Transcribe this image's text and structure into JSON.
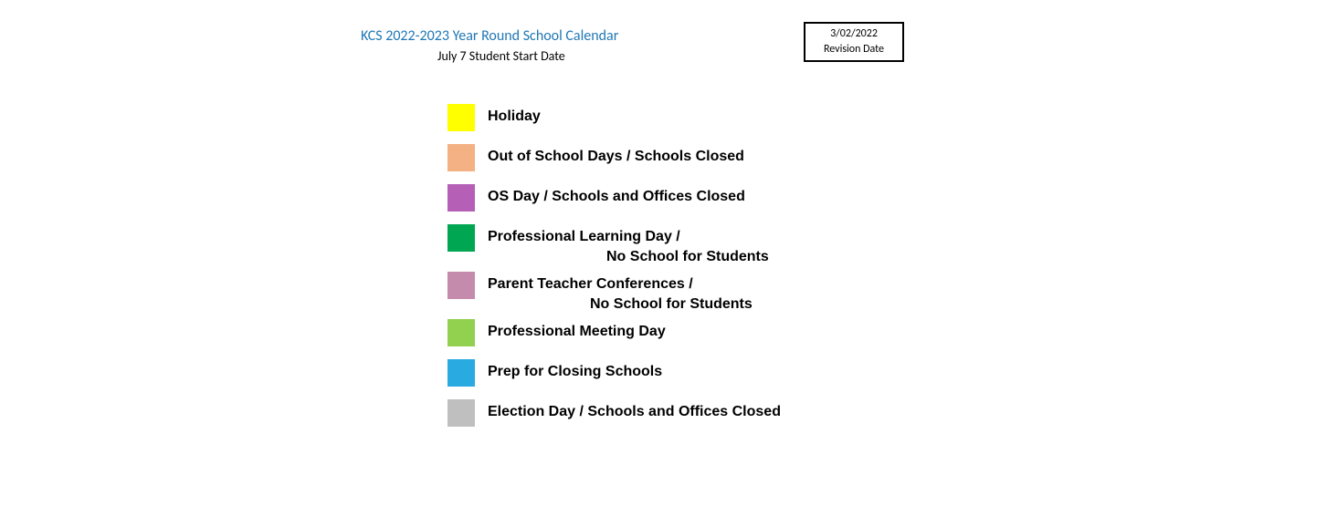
{
  "header": {
    "title": "KCS 2022-2023 Year Round School Calendar",
    "subtitle": "July 7 Student Start Date",
    "title_color": "#1f77b4"
  },
  "revision": {
    "date": "3/02/2022",
    "label": "Revision Date"
  },
  "legend": {
    "items": [
      {
        "color": "#ffff00",
        "label": "Holiday"
      },
      {
        "color": "#f4b183",
        "label": "Out of School Days / Schools Closed"
      },
      {
        "color": "#b65fb6",
        "label": "OS Day / Schools and Offices Closed"
      },
      {
        "color": "#00a651",
        "label": "Professional Learning Day /",
        "sublabel": "No School for Students"
      },
      {
        "color": "#c48bad",
        "label": "Parent Teacher Conferences /",
        "sublabel": "No School for Students"
      },
      {
        "color": "#92d050",
        "label": "Professional Meeting Day"
      },
      {
        "color": "#29abe2",
        "label": "Prep for Closing Schools"
      },
      {
        "color": "#bfbfbf",
        "label": "Election Day / Schools and Offices Closed"
      }
    ]
  }
}
